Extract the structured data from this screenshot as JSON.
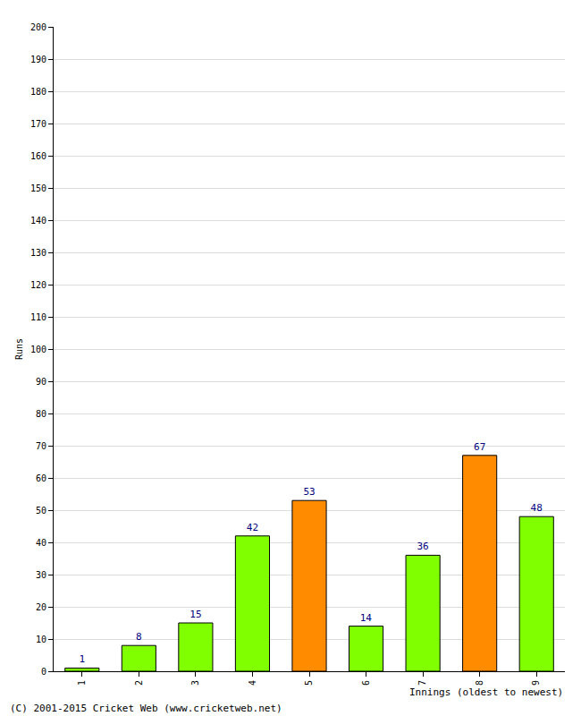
{
  "chart_data": {
    "type": "bar",
    "categories": [
      "1",
      "2",
      "3",
      "4",
      "5",
      "6",
      "7",
      "8",
      "9"
    ],
    "values": [
      1,
      8,
      15,
      42,
      53,
      14,
      36,
      67,
      48
    ],
    "colors": [
      "#7fff00",
      "#7fff00",
      "#7fff00",
      "#7fff00",
      "#ff8c00",
      "#7fff00",
      "#7fff00",
      "#ff8c00",
      "#7fff00"
    ],
    "x_label": "Innings (oldest to newest)",
    "y_label": "Runs",
    "annotations": [
      "(C) 2001-2015 Cricket Web (www.cricketweb.net)"
    ],
    "ylim": [
      0,
      200
    ],
    "yticks": [
      0,
      10,
      20,
      30,
      40,
      50,
      60,
      70,
      80,
      90,
      100,
      110,
      120,
      130,
      140,
      150,
      160,
      170,
      180,
      190,
      200
    ],
    "grid": true,
    "data_labels": true
  }
}
